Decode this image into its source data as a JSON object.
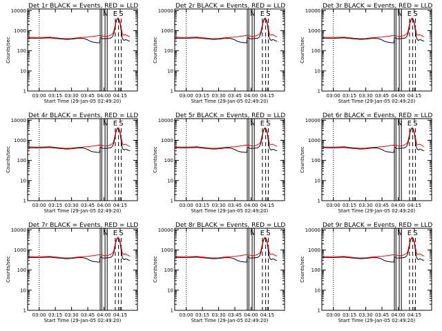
{
  "chart_data": [
    {
      "type": "line",
      "title": "Det 1r BLACK = Events, RED = LLD"
    },
    {
      "type": "line",
      "title": "Det 2r BLACK = Events, RED = LLD"
    },
    {
      "type": "line",
      "title": "Det 3r BLACK = Events, RED = LLD"
    },
    {
      "type": "line",
      "title": "Det 4r BLACK = Events, RED = LLD"
    },
    {
      "type": "line",
      "title": "Det 5r BLACK = Events, RED = LLD"
    },
    {
      "type": "line",
      "title": "Det 6r BLACK = Events, RED = LLD"
    },
    {
      "type": "line",
      "title": "Det 7r BLACK = Events, RED = LLD"
    },
    {
      "type": "line",
      "title": "Det 8r BLACK = Events, RED = LLD"
    },
    {
      "type": "line",
      "title": "Det 9r BLACK = Events, RED = LLD"
    }
  ],
  "shared": {
    "xlabel": "Start Time (29-Jan-05 02:49:20)",
    "ylabel": "Counts/sec",
    "x_ticks": [
      "03:00",
      "03:15",
      "03:30",
      "03:45",
      "04:00",
      "04:15"
    ],
    "x_tick_minutes": [
      180,
      195,
      210,
      225,
      240,
      255
    ],
    "x_range_minutes": [
      169.33,
      271
    ],
    "y_ticks": [
      "1",
      "10",
      "100",
      "1000",
      "10000"
    ],
    "y_tick_values": [
      1,
      10,
      100,
      1000,
      10000
    ],
    "y_range": [
      1,
      12000
    ],
    "y_scale": "log",
    "markers": [
      {
        "label": "N",
        "minute": 241.5
      },
      {
        "label": "E",
        "minute": 250.5
      },
      {
        "label": "S",
        "minute": 256
      }
    ],
    "colors": {
      "events": "#000000",
      "lld": "#ff0000",
      "axis": "#000000"
    },
    "series": [
      {
        "name": "Events",
        "color": "#000000",
        "x": [
          170,
          180,
          190,
          195,
          200,
          205,
          210,
          215,
          220,
          222,
          225,
          227,
          230,
          232,
          234,
          236,
          236.5,
          237.5,
          238,
          240,
          242,
          244,
          246,
          247,
          248,
          249,
          250,
          251,
          252,
          253,
          254,
          255,
          256,
          257,
          258,
          259,
          260,
          261,
          262,
          263,
          264
        ],
        "y": [
          430,
          420,
          440,
          410,
          390,
          370,
          380,
          410,
          420,
          400,
          350,
          300,
          270,
          260,
          250,
          250,
          440,
          440,
          400,
          400,
          400,
          410,
          420,
          460,
          520,
          700,
          1200,
          2400,
          3500,
          4000,
          3300,
          2200,
          900,
          420,
          350,
          330,
          360,
          350,
          330,
          310,
          300
        ]
      },
      {
        "name": "LLD",
        "color": "#ff0000",
        "x": [
          170,
          180,
          190,
          195,
          200,
          205,
          210,
          215,
          220,
          222,
          225,
          227,
          230,
          232,
          234,
          236,
          238,
          240,
          242,
          244,
          246,
          247,
          248,
          249,
          250,
          251,
          252,
          253,
          254,
          255,
          256,
          257,
          258,
          259,
          260,
          261,
          262,
          263,
          264
        ],
        "y": [
          470,
          460,
          480,
          450,
          420,
          400,
          410,
          440,
          460,
          470,
          480,
          500,
          520,
          540,
          560,
          580,
          560,
          530,
          520,
          540,
          600,
          650,
          700,
          900,
          1600,
          2800,
          3800,
          4300,
          3800,
          2600,
          1400,
          700,
          600,
          620,
          640,
          590,
          560,
          520,
          500
        ]
      }
    ]
  }
}
